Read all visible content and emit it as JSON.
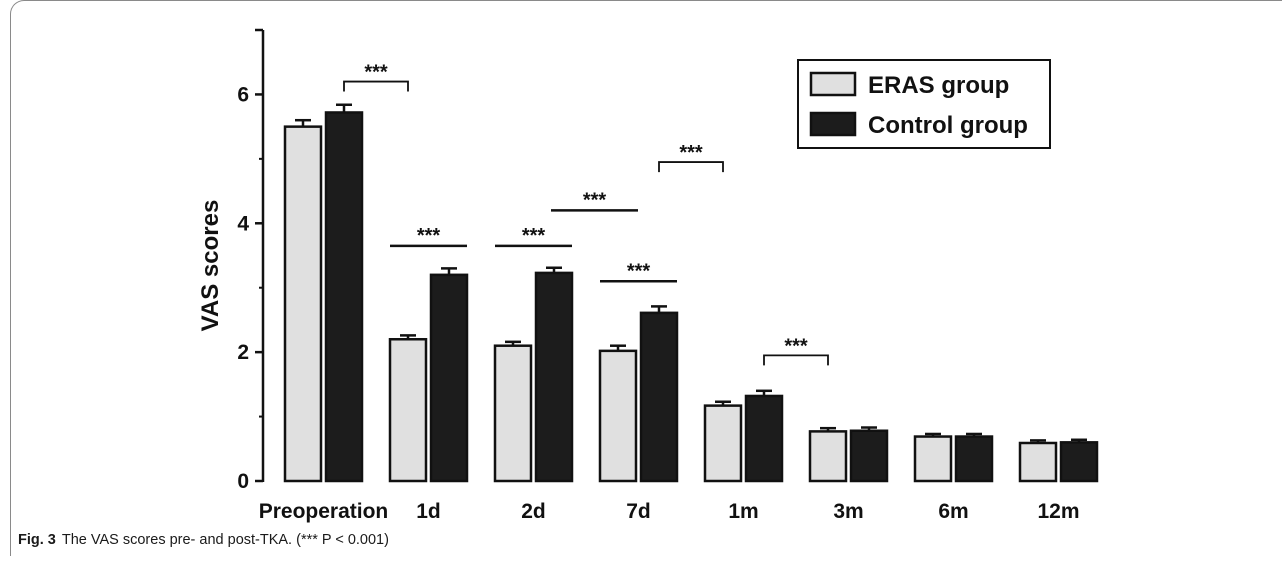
{
  "caption": {
    "label": "Fig. 3",
    "text": "The VAS scores pre- and post-TKA. (*** P < 0.001)"
  },
  "chart_data": {
    "type": "bar",
    "ylabel": "VAS scores",
    "xlabel": "",
    "ylim": [
      0,
      7
    ],
    "yticks": [
      0,
      2,
      4,
      6
    ],
    "categories": [
      "Preoperation",
      "1d",
      "2d",
      "7d",
      "1m",
      "3m",
      "6m",
      "12m"
    ],
    "series": [
      {
        "name": "ERAS group",
        "color": "#e0e0e0",
        "values": [
          5.5,
          2.2,
          2.1,
          2.02,
          1.17,
          0.77,
          0.69,
          0.59
        ],
        "errors": [
          0.1,
          0.06,
          0.06,
          0.08,
          0.06,
          0.05,
          0.04,
          0.04
        ]
      },
      {
        "name": "Control group",
        "color": "#1c1c1c",
        "values": [
          5.72,
          3.2,
          3.23,
          2.61,
          1.32,
          0.78,
          0.69,
          0.6
        ],
        "errors": [
          0.12,
          0.1,
          0.08,
          0.1,
          0.08,
          0.05,
          0.04,
          0.04
        ]
      }
    ],
    "significance": [
      {
        "label": "***",
        "type": "bracket",
        "from": 0,
        "to": 1,
        "y": 6.2
      },
      {
        "label": "***",
        "type": "line",
        "from": 1,
        "to": 1,
        "y": 3.65
      },
      {
        "label": "***",
        "type": "line",
        "from": 2,
        "to": 2,
        "y": 3.65
      },
      {
        "label": "***",
        "type": "line",
        "from": 3,
        "to": 3,
        "y": 3.1
      },
      {
        "label": "***",
        "type": "line",
        "from": 2,
        "to": 3,
        "y": 4.2
      },
      {
        "label": "***",
        "type": "bracket",
        "from": 3,
        "to": 4,
        "y": 4.95
      },
      {
        "label": "***",
        "type": "bracket",
        "from": 4,
        "to": 5,
        "y": 1.95
      }
    ],
    "legend_position": "top-right",
    "grid": false
  }
}
